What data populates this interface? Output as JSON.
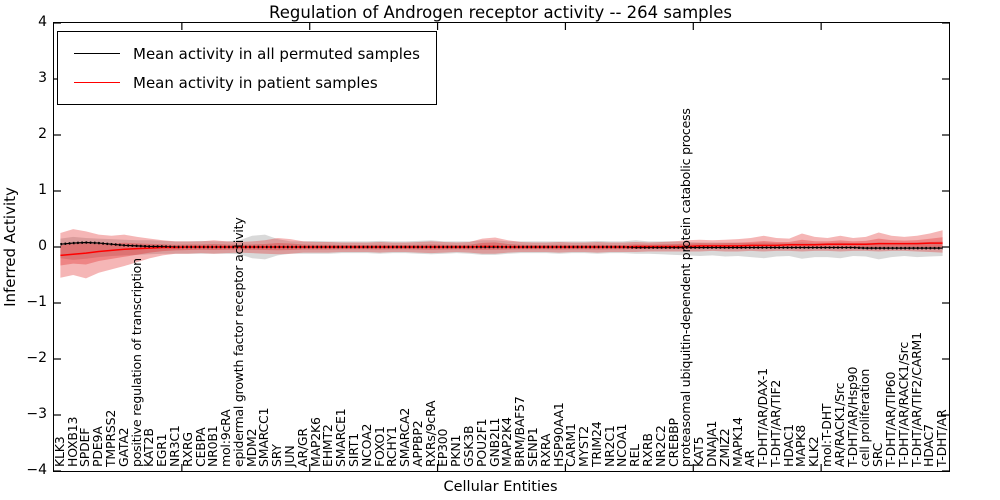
{
  "figure": {
    "background": "#ffffff",
    "frame_color": "#000000"
  },
  "chart_data": {
    "type": "line",
    "title": "Regulation of Androgen receptor activity -- 264 samples",
    "xlabel": "Cellular Entities",
    "ylabel": "Inferred Activity",
    "ylim": [
      -4,
      4
    ],
    "ytick_labels": [
      "4",
      "3",
      "2",
      "1",
      "0",
      "−1",
      "−2",
      "−3",
      "−4"
    ],
    "ytick_values": [
      4,
      3,
      2,
      1,
      0,
      -1,
      -2,
      -3,
      -4
    ],
    "grid": false,
    "legend_position": "upper left",
    "categories": [
      "KLK3",
      "HOXB13",
      "SPDEF",
      "PDE9A",
      "TMPRSS2",
      "GATA2",
      "positive regulation of transcription",
      "KAT2B",
      "EGR1",
      "NR3C1",
      "RXRG",
      "CEBPA",
      "NR0B1",
      "mol:9cRA",
      "epidermal growth factor receptor activity",
      "MDM2",
      "SMARCC1",
      "SRY",
      "JUN",
      "AR/GR",
      "MAP2K6",
      "EHMT2",
      "SMARCE1",
      "SIRT1",
      "NCOA2",
      "FOXO1",
      "RCHY1",
      "SMARCA2",
      "APPBP2",
      "RXRs/9cRA",
      "EP300",
      "PKN1",
      "GSK3B",
      "POU2F1",
      "GNB2L1",
      "MAP2K4",
      "BRM/BAF57",
      "SENP1",
      "RXRA",
      "HSP90AA1",
      "CARM1",
      "MYST2",
      "TRIM24",
      "NR2C1",
      "NCOA1",
      "REL",
      "RXRB",
      "NR2C2",
      "CREBBP",
      "proteasomal ubiquitin-dependent protein catabolic process",
      "KAT5",
      "DNAJA1",
      "ZMIZ2",
      "MAPK14",
      "AR",
      "T-DHT/AR/DAX-1",
      "T-DHT/AR/TIF2",
      "HDAC1",
      "MAPK8",
      "KLK2",
      "mol:T-DHT",
      "AR/RACK1/Src",
      "T-DHT/AR/Hsp90",
      "cell proliferation",
      "SRC",
      "T-DHT/AR/TIP60",
      "T-DHT/AR/RACK1/Src",
      "T-DHT/AR/TIF2/CARM1",
      "HDAC7",
      "T-DHT/AR"
    ],
    "series": [
      {
        "name": "Mean activity in all permuted samples",
        "color": "#000000",
        "band_color": "#aaaaaa",
        "band_opacity": 0.45,
        "values": [
          0.05,
          0.07,
          0.08,
          0.07,
          0.05,
          0.03,
          0.02,
          0.01,
          0.01,
          0,
          0,
          0,
          0,
          0,
          0,
          0,
          0,
          0,
          0,
          0,
          0,
          0,
          0,
          0,
          0,
          0,
          0,
          0,
          0,
          0,
          0,
          0,
          0,
          0,
          0,
          0,
          0,
          0,
          0,
          0,
          0,
          0,
          0,
          0,
          0,
          -0.01,
          -0.01,
          -0.01,
          -0.01,
          -0.01,
          -0.01,
          -0.01,
          -0.01,
          -0.01,
          -0.01,
          -0.01,
          -0.01,
          -0.01,
          -0.01,
          -0.01,
          -0.01,
          -0.01,
          -0.01,
          -0.02,
          -0.02,
          -0.02,
          -0.02,
          -0.02,
          -0.02,
          -0.02
        ],
        "band_hi": [
          0.15,
          0.18,
          0.16,
          0.15,
          0.14,
          0.13,
          0.12,
          0.12,
          0.11,
          0.1,
          0.1,
          0.11,
          0.1,
          0.1,
          0.12,
          0.2,
          0.22,
          0.14,
          0.1,
          0.1,
          0.11,
          0.1,
          0.1,
          0.1,
          0.1,
          0.11,
          0.1,
          0.1,
          0.11,
          0.12,
          0.1,
          0.1,
          0.1,
          0.12,
          0.12,
          0.1,
          0.1,
          0.1,
          0.1,
          0.1,
          0.1,
          0.1,
          0.11,
          0.1,
          0.1,
          0.12,
          0.1,
          0.1,
          0.1,
          0.09,
          0.08,
          0.08,
          0.08,
          0.08,
          0.07,
          0.08,
          0.07,
          0.07,
          0.08,
          0.07,
          0.07,
          0.08,
          0.07,
          0.07,
          0.08,
          0.07,
          0.07,
          0.08,
          0.09,
          0.1
        ],
        "band_lo": [
          -0.2,
          -0.23,
          -0.21,
          -0.18,
          -0.16,
          -0.15,
          -0.14,
          -0.13,
          -0.12,
          -0.12,
          -0.12,
          -0.12,
          -0.12,
          -0.12,
          -0.13,
          -0.2,
          -0.22,
          -0.15,
          -0.12,
          -0.12,
          -0.12,
          -0.12,
          -0.11,
          -0.11,
          -0.11,
          -0.12,
          -0.11,
          -0.11,
          -0.12,
          -0.13,
          -0.12,
          -0.11,
          -0.12,
          -0.14,
          -0.14,
          -0.12,
          -0.11,
          -0.11,
          -0.11,
          -0.12,
          -0.11,
          -0.11,
          -0.12,
          -0.11,
          -0.11,
          -0.12,
          -0.12,
          -0.13,
          -0.14,
          -0.15,
          -0.16,
          -0.15,
          -0.17,
          -0.16,
          -0.18,
          -0.2,
          -0.17,
          -0.16,
          -0.21,
          -0.18,
          -0.18,
          -0.2,
          -0.16,
          -0.17,
          -0.22,
          -0.18,
          -0.16,
          -0.18,
          -0.17,
          -0.16
        ]
      },
      {
        "name": "Mean activity in patient samples",
        "color": "#ff0000",
        "band_color": "#e02020",
        "band_opacity": 0.33,
        "inner_band_scale": 0.45,
        "values": [
          -0.15,
          -0.13,
          -0.11,
          -0.08,
          -0.06,
          -0.04,
          -0.03,
          -0.02,
          -0.01,
          -0.01,
          0,
          0,
          0,
          0,
          0,
          0,
          0,
          0,
          0,
          0,
          0,
          0,
          0,
          0,
          0,
          0,
          0,
          0,
          0,
          0,
          0,
          0,
          0,
          0.01,
          0.01,
          0,
          0,
          0,
          0,
          0,
          0,
          0,
          0,
          0,
          0,
          0.01,
          0.01,
          0.01,
          0.01,
          0.01,
          0.02,
          0.02,
          0.02,
          0.02,
          0.03,
          0.03,
          0.03,
          0.04,
          0.04,
          0.04,
          0.05,
          0.05,
          0.05,
          0.05,
          0.06,
          0.06,
          0.06,
          0.06,
          0.07,
          0.07
        ],
        "band_hi": [
          0.25,
          0.32,
          0.28,
          0.22,
          0.2,
          0.22,
          0.18,
          0.15,
          0.12,
          0.1,
          0.1,
          0.1,
          0.12,
          0.1,
          0.09,
          0.1,
          0.12,
          0.16,
          0.14,
          0.1,
          0.09,
          0.09,
          0.08,
          0.08,
          0.08,
          0.09,
          0.08,
          0.08,
          0.09,
          0.1,
          0.09,
          0.08,
          0.09,
          0.15,
          0.17,
          0.12,
          0.09,
          0.08,
          0.08,
          0.09,
          0.08,
          0.08,
          0.09,
          0.08,
          0.08,
          0.09,
          0.08,
          0.09,
          0.1,
          0.12,
          0.13,
          0.12,
          0.13,
          0.14,
          0.16,
          0.2,
          0.16,
          0.15,
          0.24,
          0.18,
          0.16,
          0.2,
          0.16,
          0.18,
          0.26,
          0.2,
          0.18,
          0.2,
          0.24,
          0.3
        ],
        "band_lo": [
          -0.55,
          -0.5,
          -0.56,
          -0.46,
          -0.4,
          -0.34,
          -0.27,
          -0.2,
          -0.15,
          -0.12,
          -0.12,
          -0.11,
          -0.12,
          -0.11,
          -0.1,
          -0.11,
          -0.12,
          -0.13,
          -0.12,
          -0.1,
          -0.1,
          -0.1,
          -0.09,
          -0.09,
          -0.09,
          -0.1,
          -0.09,
          -0.09,
          -0.1,
          -0.11,
          -0.1,
          -0.09,
          -0.1,
          -0.12,
          -0.12,
          -0.1,
          -0.09,
          -0.09,
          -0.09,
          -0.1,
          -0.09,
          -0.09,
          -0.1,
          -0.09,
          -0.09,
          -0.09,
          -0.08,
          -0.08,
          -0.08,
          -0.08,
          -0.08,
          -0.07,
          -0.08,
          -0.08,
          -0.07,
          -0.08,
          -0.07,
          -0.07,
          -0.08,
          -0.07,
          -0.07,
          -0.08,
          -0.07,
          -0.07,
          -0.08,
          -0.07,
          -0.07,
          -0.08,
          -0.09,
          -0.1
        ]
      }
    ]
  }
}
